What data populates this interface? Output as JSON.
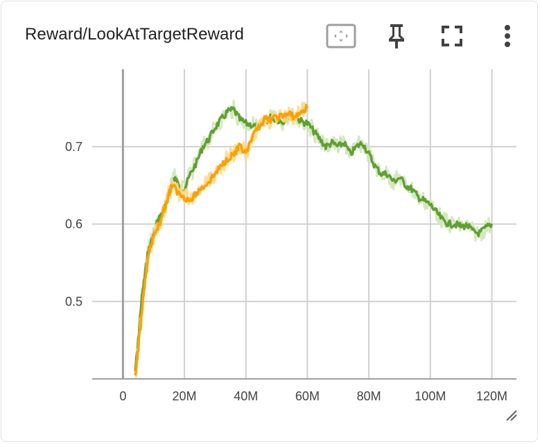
{
  "card": {
    "title": "Reward/LookAtTargetReward",
    "toolbar": [
      {
        "name": "fit-domain-button",
        "icon": "fit-to-data-icon"
      },
      {
        "name": "pin-button",
        "icon": "pin-icon"
      },
      {
        "name": "fullscreen-button",
        "icon": "fullscreen-icon"
      },
      {
        "name": "more-options-button",
        "icon": "more-vert-icon"
      }
    ]
  },
  "colors": {
    "series_green": "#5fa12f",
    "series_green_band": "#cfe6b8",
    "series_orange": "#ff9f00",
    "series_orange_band": "#ffd98a",
    "grid": "#d0d0d0",
    "axis": "#9e9e9e"
  },
  "chart_data": {
    "type": "line",
    "title": "",
    "xlabel": "",
    "ylabel": "",
    "xlim": [
      -10000000,
      128000000
    ],
    "ylim": [
      0.4,
      0.8
    ],
    "x_ticks": [
      0,
      20000000,
      40000000,
      60000000,
      80000000,
      100000000,
      120000000
    ],
    "x_tick_labels": [
      "0",
      "20M",
      "40M",
      "60M",
      "80M",
      "100M",
      "120M"
    ],
    "y_ticks": [
      0.5,
      0.6,
      0.7
    ],
    "y_tick_labels": [
      "0.5",
      "0.6",
      "0.7"
    ],
    "grid": true,
    "legend": "none",
    "series": [
      {
        "color": "#5fa12f",
        "x": [
          4000000,
          5000000,
          6000000,
          7000000,
          8000000,
          9000000,
          10000000,
          11000000,
          12000000,
          14000000,
          16000000,
          17000000,
          18000000,
          20000000,
          22000000,
          24000000,
          26000000,
          28000000,
          30000000,
          32000000,
          34000000,
          36000000,
          38000000,
          40000000,
          42000000,
          44000000,
          46000000,
          48000000,
          50000000,
          52000000,
          54000000,
          56000000,
          58000000,
          60000000,
          62000000,
          64000000,
          66000000,
          68000000,
          70000000,
          72000000,
          74000000,
          76000000,
          78000000,
          80000000,
          82000000,
          84000000,
          86000000,
          88000000,
          90000000,
          92000000,
          94000000,
          96000000,
          98000000,
          100000000,
          102000000,
          104000000,
          106000000,
          108000000,
          110000000,
          112000000,
          114000000,
          116000000,
          118000000,
          120000000
        ],
        "values": [
          0.41,
          0.45,
          0.5,
          0.53,
          0.56,
          0.575,
          0.585,
          0.6,
          0.61,
          0.625,
          0.655,
          0.66,
          0.65,
          0.645,
          0.665,
          0.68,
          0.7,
          0.71,
          0.725,
          0.735,
          0.745,
          0.748,
          0.735,
          0.73,
          0.728,
          0.725,
          0.73,
          0.738,
          0.735,
          0.732,
          0.74,
          0.738,
          0.733,
          0.73,
          0.72,
          0.71,
          0.7,
          0.705,
          0.7,
          0.705,
          0.69,
          0.7,
          0.705,
          0.69,
          0.675,
          0.665,
          0.665,
          0.655,
          0.66,
          0.65,
          0.645,
          0.635,
          0.63,
          0.625,
          0.615,
          0.605,
          0.6,
          0.6,
          0.597,
          0.598,
          0.59,
          0.588,
          0.595,
          0.6
        ]
      },
      {
        "color": "#ff9f00",
        "x": [
          4000000,
          5000000,
          6000000,
          7000000,
          8000000,
          9000000,
          10000000,
          11000000,
          12000000,
          13000000,
          14000000,
          15000000,
          16000000,
          18000000,
          20000000,
          22000000,
          24000000,
          26000000,
          28000000,
          30000000,
          32000000,
          34000000,
          36000000,
          37000000,
          38000000,
          40000000,
          42000000,
          44000000,
          46000000,
          48000000,
          50000000,
          52000000,
          54000000,
          56000000,
          58000000,
          60000000
        ],
        "values": [
          0.4,
          0.44,
          0.48,
          0.52,
          0.55,
          0.57,
          0.585,
          0.595,
          0.6,
          0.615,
          0.625,
          0.64,
          0.65,
          0.64,
          0.635,
          0.63,
          0.64,
          0.648,
          0.655,
          0.665,
          0.675,
          0.685,
          0.69,
          0.695,
          0.7,
          0.69,
          0.71,
          0.725,
          0.735,
          0.735,
          0.738,
          0.74,
          0.742,
          0.738,
          0.745,
          0.75
        ]
      }
    ]
  }
}
